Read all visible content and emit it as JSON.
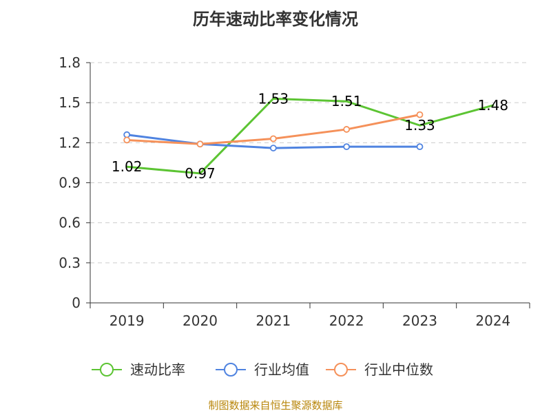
{
  "chart_data": {
    "type": "line",
    "title": "历年速动比率变化情况",
    "categories": [
      "2019",
      "2020",
      "2021",
      "2022",
      "2023",
      "2024"
    ],
    "y_ticks": [
      "0",
      "0.3",
      "0.6",
      "0.9",
      "1.2",
      "1.5",
      "1.8"
    ],
    "ylim": [
      0,
      1.8
    ],
    "grid": true,
    "legend_position": "bottom",
    "series": [
      {
        "name": "速动比率",
        "color": "#5cc433",
        "values": [
          1.02,
          0.97,
          1.53,
          1.51,
          1.33,
          1.48
        ],
        "labels": [
          "1.02",
          "0.97",
          "1.53",
          "1.51",
          "1.33",
          "1.48"
        ],
        "show_points": false
      },
      {
        "name": "行业均值",
        "color": "#4f83e0",
        "values": [
          1.26,
          1.19,
          1.16,
          1.17,
          1.17,
          null
        ],
        "show_points": true
      },
      {
        "name": "行业中位数",
        "color": "#f5915a",
        "values": [
          1.22,
          1.19,
          1.23,
          1.3,
          1.41,
          null
        ],
        "show_points": true
      }
    ],
    "source": "制图数据来自恒生聚源数据库"
  }
}
